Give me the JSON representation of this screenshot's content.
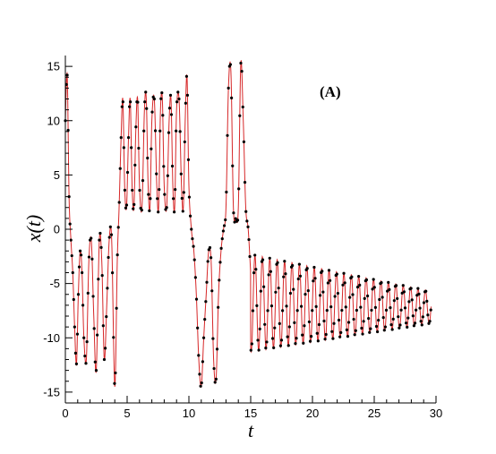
{
  "chart_data": {
    "type": "line",
    "panel_label": "(A)",
    "xlabel": "t",
    "ylabel": "x(t)",
    "xlim": [
      0,
      30
    ],
    "ylim": [
      -16,
      16
    ],
    "x_ticks": [
      0,
      5,
      10,
      15,
      20,
      25,
      30
    ],
    "y_ticks": [
      -15,
      -10,
      -5,
      0,
      5,
      10,
      15
    ],
    "grid": false,
    "line_color": "#d62728",
    "marker_color": "#000000",
    "curve": {
      "t": [
        0.0,
        0.15,
        0.3,
        0.45,
        0.6,
        0.75,
        0.9,
        1.05,
        1.2,
        1.35,
        1.5,
        1.7,
        1.9,
        2.1,
        2.3,
        2.5,
        2.75,
        2.95,
        3.15,
        3.35,
        3.55,
        3.75,
        4.0,
        4.2,
        4.35,
        4.5,
        4.65,
        4.8,
        4.95,
        5.1,
        5.25,
        5.4,
        5.55,
        5.7,
        5.85,
        6.0,
        6.2,
        6.4,
        6.55,
        6.7,
        6.85,
        7.0,
        7.2,
        7.4,
        7.55,
        7.7,
        7.85,
        8.0,
        8.2,
        8.4,
        8.55,
        8.7,
        8.85,
        9.0,
        9.2,
        9.4,
        9.55,
        9.7,
        9.85,
        10.0,
        10.2,
        10.4,
        10.6,
        10.8,
        11.0,
        11.2,
        11.4,
        11.6,
        11.8,
        12.0,
        12.2,
        12.4,
        12.6,
        12.8,
        13.0,
        13.2,
        13.4,
        13.6,
        13.8,
        14.0,
        14.2,
        14.4,
        14.6,
        14.8,
        15.0
      ],
      "x": [
        10,
        14.2,
        3,
        -1,
        -4,
        -9,
        -12.4,
        -6,
        -2,
        -4,
        -10,
        -12,
        -3,
        -1,
        -8,
        -13,
        -1,
        -3,
        -12,
        -7,
        -1,
        -1,
        -14.5,
        -3,
        2,
        8,
        12,
        4,
        2,
        8,
        12,
        4,
        2,
        9,
        12,
        4,
        2,
        11,
        12,
        4,
        2,
        10,
        12,
        4,
        2,
        11,
        12,
        4,
        2,
        10,
        12,
        4,
        2,
        11,
        12,
        4,
        2,
        10,
        14,
        4,
        0,
        -2,
        -6,
        -12,
        -14.5,
        -10,
        -6,
        -2,
        -3,
        -12,
        -13.8,
        -6,
        -2,
        0,
        2,
        13,
        14.5,
        2,
        1,
        2,
        15.3,
        10,
        2,
        0,
        -4
      ]
    },
    "decay": {
      "t_start": 15.0,
      "t_end": 29.6,
      "period": 0.6,
      "center_start": -6.8,
      "center_end": -7.2,
      "amp_start": 4.5,
      "amp_end": 1.5
    },
    "marker_spacing": 0.07
  }
}
